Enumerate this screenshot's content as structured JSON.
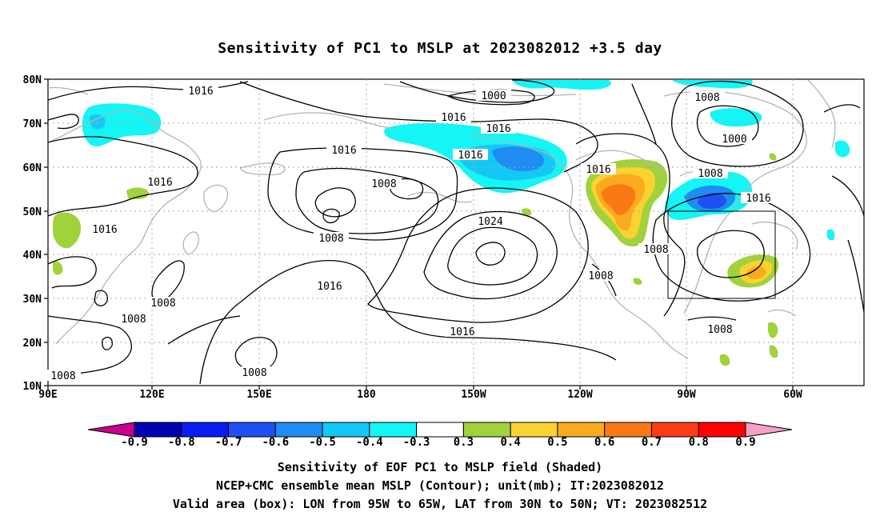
{
  "title": "Sensitivity of PC1 to MSLP at 2023082012 +3.5 day",
  "axes": {
    "lon_labels": [
      "90E",
      "120E",
      "150E",
      "180",
      "150W",
      "120W",
      "90W",
      "60W"
    ],
    "lat_labels": [
      "80N",
      "70N",
      "60N",
      "50N",
      "40N",
      "30N",
      "20N",
      "10N"
    ]
  },
  "contour_labels": [
    "1016",
    "1016",
    "1016",
    "1016",
    "1016",
    "1016",
    "1016",
    "1016",
    "1016",
    "1016",
    "1000",
    "1000",
    "1008",
    "1008",
    "1008",
    "1008",
    "1008",
    "1008",
    "1008",
    "1008",
    "1008",
    "1008",
    "1008",
    "1024"
  ],
  "colorbar": {
    "labels": [
      "-0.9",
      "-0.8",
      "-0.7",
      "-0.6",
      "-0.5",
      "-0.4",
      "-0.3",
      "0.3",
      "0.4",
      "0.5",
      "0.6",
      "0.7",
      "0.8",
      "0.9"
    ],
    "colors": [
      "#0000b0",
      "#0a1cf0",
      "#1e50f5",
      "#1e8cf0",
      "#14c8f5",
      "#14f5f5",
      "#ffffff",
      "#a0d23c",
      "#fad232",
      "#faaa1e",
      "#fa7814",
      "#fa3c14",
      "#ff0000"
    ],
    "left_end_color": "#c8008c",
    "right_end_color": "#f5a0c8"
  },
  "captions": {
    "line1": "Sensitivity of EOF PC1 to MSLP field (Shaded)",
    "line2": "NCEP+CMC ensemble mean MSLP (Contour); unit(mb); IT:2023082012",
    "line3": "Valid area (box): LON from 95W to 65W, LAT from 30N to 50N; VT: 2023082512"
  }
}
